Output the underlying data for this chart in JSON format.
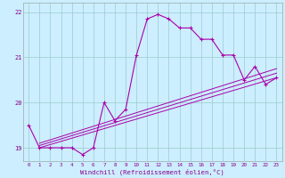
{
  "title": "",
  "xlabel": "Windchill (Refroidissement éolien,°C)",
  "bg_color": "#cceeff",
  "line_color": "#aa00aa",
  "grid_color": "#99cccc",
  "xlim": [
    -0.5,
    23.5
  ],
  "ylim": [
    18.7,
    22.2
  ],
  "yticks": [
    19,
    20,
    21,
    22
  ],
  "xticks": [
    0,
    1,
    2,
    3,
    4,
    5,
    6,
    7,
    8,
    9,
    10,
    11,
    12,
    13,
    14,
    15,
    16,
    17,
    18,
    19,
    20,
    21,
    22,
    23
  ],
  "series1_x": [
    0,
    1,
    2,
    3,
    4,
    5,
    6,
    7,
    8,
    9,
    10,
    11,
    12,
    13,
    14,
    15,
    16,
    17,
    18,
    19,
    20,
    21,
    22,
    23
  ],
  "series1_y": [
    19.5,
    19.0,
    19.0,
    19.0,
    19.0,
    18.85,
    19.0,
    20.0,
    19.6,
    19.85,
    21.05,
    21.85,
    21.95,
    21.85,
    21.65,
    21.65,
    21.4,
    21.4,
    21.05,
    21.05,
    20.5,
    20.8,
    20.4,
    20.55
  ],
  "series2_x": [
    1,
    23
  ],
  "series2_y": [
    19.0,
    20.55
  ],
  "series3_x": [
    1,
    23
  ],
  "series3_y": [
    19.05,
    20.65
  ],
  "series4_x": [
    1,
    23
  ],
  "series4_y": [
    19.1,
    20.75
  ]
}
